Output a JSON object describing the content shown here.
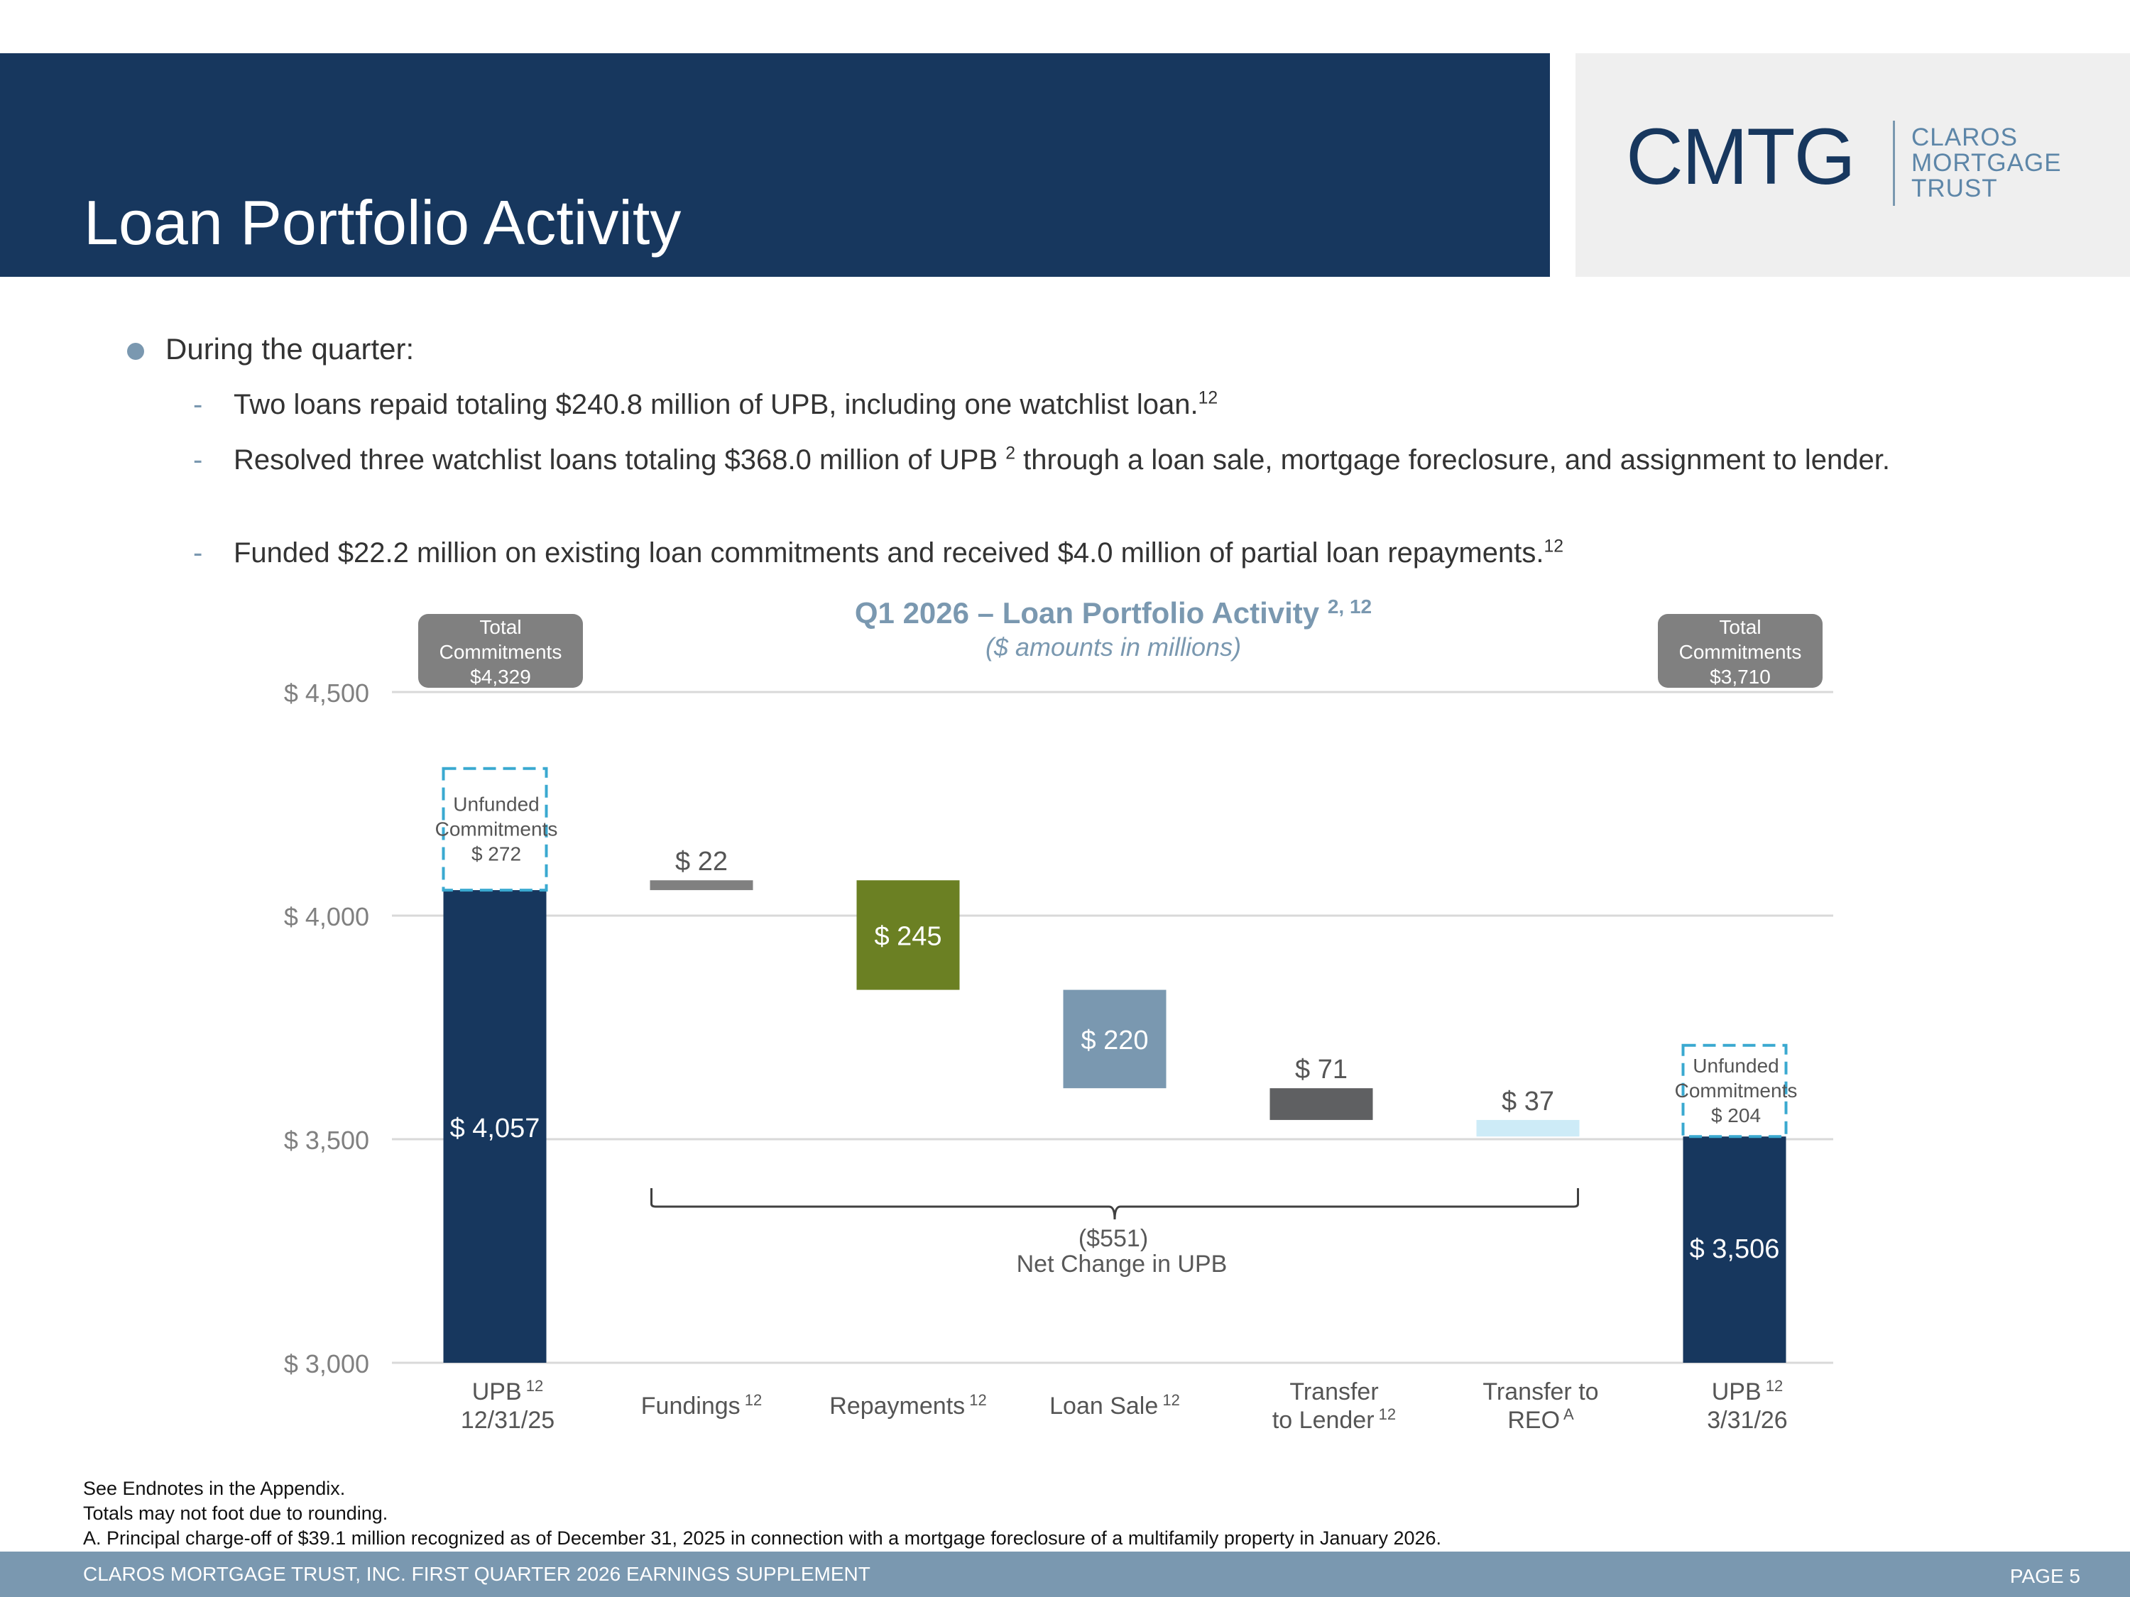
{
  "header": {
    "title": "Loan Portfolio Activity",
    "logo_mark": "CMTG",
    "logo_words": [
      "CLAROS",
      "MORTGAGE",
      "TRUST"
    ]
  },
  "bullets": {
    "main": "During the quarter:",
    "items": [
      {
        "text": "Two loans repaid totaling $240.8 million of UPB, including one watchlist loan.",
        "sup": "12"
      },
      {
        "text": "Resolved three watchlist loans totaling $368.0 million of UPB",
        "sup": "2",
        "text_after": " through a loan sale, mortgage foreclosure, and assignment to lender."
      },
      {
        "text": "Funded $22.2 million on existing loan commitments and received $4.0 million of partial loan repayments.",
        "sup": "12"
      }
    ]
  },
  "chart_data": {
    "type": "bar",
    "subtype": "waterfall",
    "title": "Q1 2026 – Loan Portfolio Activity",
    "title_sup": "2, 12",
    "subtitle": "($ amounts in millions)",
    "ylim": [
      3000,
      4500
    ],
    "yticks": [
      3000,
      3500,
      4000,
      4500
    ],
    "ytick_labels": [
      "$ 3,000",
      "$ 3,500",
      "$ 4,000",
      "$ 4,500"
    ],
    "grid": true,
    "categories": [
      {
        "label": [
          "UPB",
          "12/31/25"
        ],
        "sup": "12"
      },
      {
        "label": [
          "Fundings"
        ],
        "sup": "12"
      },
      {
        "label": [
          "Repayments"
        ],
        "sup": "12"
      },
      {
        "label": [
          "Loan Sale"
        ],
        "sup": "12"
      },
      {
        "label": [
          "Transfer",
          "to Lender"
        ],
        "sup": "12"
      },
      {
        "label": [
          "Transfer to",
          "REO"
        ],
        "sup": "A"
      },
      {
        "label": [
          "UPB",
          "3/31/26"
        ],
        "sup": "12"
      }
    ],
    "bars": [
      {
        "kind": "total",
        "bottom": 3000,
        "top": 4057,
        "value_label": "$ 4,057",
        "color": "#17375e",
        "label_pos": "inside"
      },
      {
        "kind": "increase",
        "bottom": 4057,
        "top": 4079,
        "value_label": "$ 22",
        "color": "#808080",
        "label_pos": "above"
      },
      {
        "kind": "decrease",
        "bottom": 3834,
        "top": 4079,
        "value_label": "$ 245",
        "color": "#6b8023",
        "label_pos": "inside"
      },
      {
        "kind": "decrease",
        "bottom": 3614,
        "top": 3834,
        "value_label": "$ 220",
        "color": "#7a98b0",
        "label_pos": "inside"
      },
      {
        "kind": "decrease",
        "bottom": 3543,
        "top": 3614,
        "value_label": "$ 71",
        "color": "#5f6062",
        "label_pos": "above"
      },
      {
        "kind": "decrease",
        "bottom": 3506,
        "top": 3543,
        "value_label": "$ 37",
        "color": "#cdebf7",
        "label_pos": "above"
      },
      {
        "kind": "total",
        "bottom": 3000,
        "top": 3506,
        "value_label": "$ 3,506",
        "color": "#17375e",
        "label_pos": "inside_low"
      }
    ],
    "unfunded": [
      {
        "bar": 0,
        "bottom": 4057,
        "top": 4329,
        "lines": [
          "Unfunded",
          "Commitments",
          "$ 272"
        ]
      },
      {
        "bar": 6,
        "bottom": 3506,
        "top": 3710,
        "lines": [
          "Unfunded",
          "Commitments",
          "$ 204"
        ]
      }
    ],
    "total_commitments": [
      {
        "bar": 0,
        "lines": [
          "Total",
          "Commitments",
          "$4,329"
        ]
      },
      {
        "bar": 6,
        "lines": [
          "Total",
          "Commitments",
          "$3,710"
        ]
      }
    ],
    "net_change": {
      "from_bar": 1,
      "to_bar": 5,
      "lines": [
        "($551)",
        "Net Change in UPB"
      ]
    },
    "colors": {
      "axis_text": "#808080",
      "title": "#7a98b0",
      "grid": "#d9d9d9",
      "unfunded_border": "#3aa9d0",
      "commit_box": "#808080"
    }
  },
  "footnotes": [
    "See Endnotes in the Appendix.",
    "Totals may not foot due to rounding.",
    "A. Principal charge-off of $39.1 million recognized as of December 31, 2025 in connection with a mortgage foreclosure of a multifamily property in January 2026."
  ],
  "footer": {
    "left": "CLAROS MORTGAGE TRUST, INC. FIRST QUARTER 2026 EARNINGS SUPPLEMENT",
    "right": "PAGE 5"
  }
}
